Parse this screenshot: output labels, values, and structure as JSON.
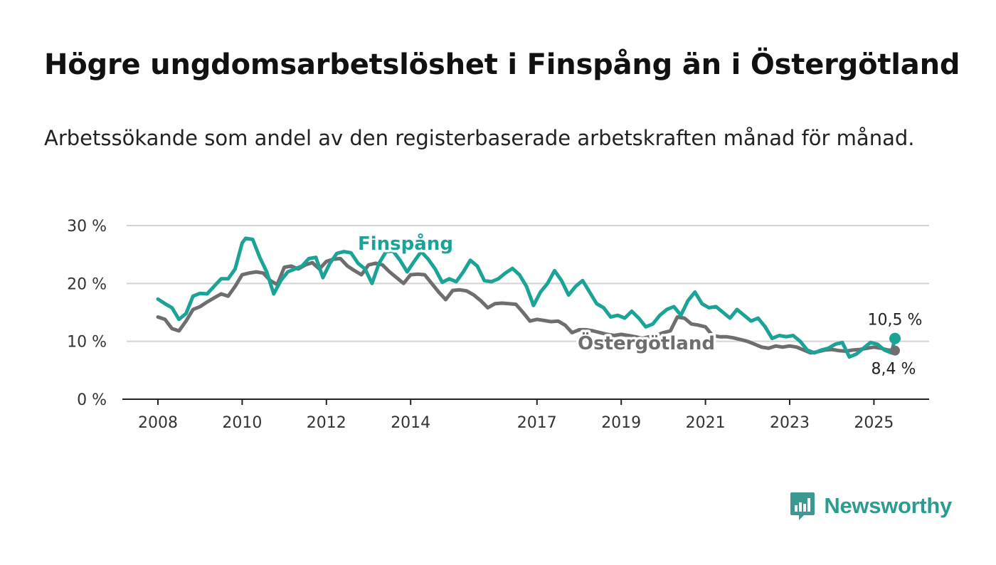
{
  "title": "Högre ungdomsarbetslöshet i Finspång än i Östergötland",
  "subtitle": "Arbetssökande som andel av den registerbaserade arbetskraften månad för månad.",
  "brand": {
    "name": "Newsworthy",
    "logo_icon": "bar-chart-speech-bubble-icon",
    "color": "#3a9a92"
  },
  "chart_data": {
    "type": "line",
    "x_start": "2008-01",
    "x_end": "2025-07",
    "x_ticks": [
      "2008",
      "2010",
      "2012",
      "2014",
      "2017",
      "2019",
      "2021",
      "2023",
      "2025"
    ],
    "y_ticks": [
      "0 %",
      "10 %",
      "20 %",
      "30 %"
    ],
    "ylim": [
      0,
      30
    ],
    "grid": true,
    "series": [
      {
        "name": "Finspång",
        "color": "#1aa396",
        "end_label": "10,5 %",
        "points": [
          [
            "2008-01",
            17.3
          ],
          [
            "2008-03",
            16.5
          ],
          [
            "2008-05",
            15.8
          ],
          [
            "2008-07",
            13.8
          ],
          [
            "2008-09",
            14.8
          ],
          [
            "2008-11",
            17.8
          ],
          [
            "2009-01",
            18.3
          ],
          [
            "2009-03",
            18.2
          ],
          [
            "2009-05",
            19.5
          ],
          [
            "2009-07",
            20.8
          ],
          [
            "2009-09",
            20.8
          ],
          [
            "2009-11",
            22.5
          ],
          [
            "2010-01",
            27.0
          ],
          [
            "2010-02",
            27.8
          ],
          [
            "2010-04",
            27.6
          ],
          [
            "2010-06",
            24.5
          ],
          [
            "2010-08",
            22.0
          ],
          [
            "2010-10",
            18.2
          ],
          [
            "2010-12",
            20.5
          ],
          [
            "2011-02",
            22.0
          ],
          [
            "2011-04",
            22.5
          ],
          [
            "2011-06",
            23.0
          ],
          [
            "2011-08",
            24.3
          ],
          [
            "2011-10",
            24.5
          ],
          [
            "2011-12",
            21.0
          ],
          [
            "2012-02",
            23.5
          ],
          [
            "2012-04",
            25.2
          ],
          [
            "2012-06",
            25.5
          ],
          [
            "2012-08",
            25.3
          ],
          [
            "2012-10",
            23.5
          ],
          [
            "2012-12",
            22.5
          ],
          [
            "2013-02",
            20.0
          ],
          [
            "2013-04",
            23.5
          ],
          [
            "2013-06",
            25.5
          ],
          [
            "2013-08",
            25.6
          ],
          [
            "2013-10",
            24.0
          ],
          [
            "2013-12",
            22.0
          ],
          [
            "2014-02",
            23.8
          ],
          [
            "2014-04",
            25.5
          ],
          [
            "2014-06",
            24.2
          ],
          [
            "2014-08",
            22.5
          ],
          [
            "2014-10",
            20.2
          ],
          [
            "2014-12",
            20.8
          ],
          [
            "2015-02",
            20.3
          ],
          [
            "2015-04",
            22.0
          ],
          [
            "2015-06",
            24.0
          ],
          [
            "2015-08",
            23.0
          ],
          [
            "2015-10",
            20.5
          ],
          [
            "2015-12",
            20.3
          ],
          [
            "2016-02",
            20.8
          ],
          [
            "2016-04",
            21.8
          ],
          [
            "2016-06",
            22.6
          ],
          [
            "2016-08",
            21.5
          ],
          [
            "2016-10",
            19.5
          ],
          [
            "2016-12",
            16.2
          ],
          [
            "2017-02",
            18.5
          ],
          [
            "2017-04",
            20.0
          ],
          [
            "2017-06",
            22.2
          ],
          [
            "2017-08",
            20.5
          ],
          [
            "2017-10",
            18.0
          ],
          [
            "2017-12",
            19.5
          ],
          [
            "2018-02",
            20.5
          ],
          [
            "2018-04",
            18.5
          ],
          [
            "2018-06",
            16.5
          ],
          [
            "2018-08",
            15.8
          ],
          [
            "2018-10",
            14.2
          ],
          [
            "2018-12",
            14.5
          ],
          [
            "2019-02",
            14.0
          ],
          [
            "2019-04",
            15.2
          ],
          [
            "2019-06",
            14.0
          ],
          [
            "2019-08",
            12.5
          ],
          [
            "2019-10",
            13.0
          ],
          [
            "2019-12",
            14.5
          ],
          [
            "2020-02",
            15.5
          ],
          [
            "2020-04",
            16.0
          ],
          [
            "2020-06",
            14.5
          ],
          [
            "2020-08",
            17.0
          ],
          [
            "2020-10",
            18.5
          ],
          [
            "2020-12",
            16.5
          ],
          [
            "2021-02",
            15.8
          ],
          [
            "2021-04",
            16.0
          ],
          [
            "2021-06",
            15.0
          ],
          [
            "2021-08",
            14.0
          ],
          [
            "2021-10",
            15.5
          ],
          [
            "2021-12",
            14.5
          ],
          [
            "2022-02",
            13.5
          ],
          [
            "2022-04",
            14.0
          ],
          [
            "2022-06",
            12.5
          ],
          [
            "2022-08",
            10.5
          ],
          [
            "2022-10",
            11.0
          ],
          [
            "2022-12",
            10.8
          ],
          [
            "2023-02",
            11.0
          ],
          [
            "2023-04",
            10.0
          ],
          [
            "2023-06",
            8.5
          ],
          [
            "2023-08",
            8.0
          ],
          [
            "2023-10",
            8.5
          ],
          [
            "2023-12",
            8.8
          ],
          [
            "2024-02",
            9.5
          ],
          [
            "2024-04",
            9.8
          ],
          [
            "2024-06",
            7.3
          ],
          [
            "2024-08",
            7.8
          ],
          [
            "2024-10",
            8.8
          ],
          [
            "2024-12",
            9.8
          ],
          [
            "2025-02",
            9.5
          ],
          [
            "2025-04",
            8.5
          ],
          [
            "2025-06",
            8.0
          ],
          [
            "2025-07",
            10.5
          ]
        ]
      },
      {
        "name": "Östergötland",
        "color": "#6e6e70",
        "end_label": "8,4 %",
        "points": [
          [
            "2008-01",
            14.2
          ],
          [
            "2008-03",
            13.8
          ],
          [
            "2008-05",
            12.2
          ],
          [
            "2008-07",
            11.8
          ],
          [
            "2008-09",
            13.5
          ],
          [
            "2008-11",
            15.5
          ],
          [
            "2009-01",
            16.0
          ],
          [
            "2009-03",
            16.8
          ],
          [
            "2009-05",
            17.5
          ],
          [
            "2009-07",
            18.2
          ],
          [
            "2009-09",
            17.8
          ],
          [
            "2009-11",
            19.5
          ],
          [
            "2010-01",
            21.5
          ],
          [
            "2010-03",
            21.8
          ],
          [
            "2010-05",
            22.0
          ],
          [
            "2010-07",
            21.8
          ],
          [
            "2010-09",
            20.5
          ],
          [
            "2010-11",
            19.8
          ],
          [
            "2011-01",
            22.8
          ],
          [
            "2011-03",
            23.0
          ],
          [
            "2011-05",
            22.5
          ],
          [
            "2011-07",
            23.2
          ],
          [
            "2011-09",
            23.6
          ],
          [
            "2011-11",
            22.5
          ],
          [
            "2012-01",
            23.8
          ],
          [
            "2012-03",
            24.2
          ],
          [
            "2012-05",
            24.3
          ],
          [
            "2012-07",
            23.0
          ],
          [
            "2012-09",
            22.2
          ],
          [
            "2012-11",
            21.5
          ],
          [
            "2013-01",
            23.2
          ],
          [
            "2013-03",
            23.5
          ],
          [
            "2013-05",
            23.2
          ],
          [
            "2013-07",
            22.0
          ],
          [
            "2013-09",
            21.0
          ],
          [
            "2013-11",
            20.0
          ],
          [
            "2014-01",
            21.5
          ],
          [
            "2014-03",
            21.6
          ],
          [
            "2014-05",
            21.5
          ],
          [
            "2014-07",
            20.0
          ],
          [
            "2014-09",
            18.5
          ],
          [
            "2014-11",
            17.2
          ],
          [
            "2015-01",
            18.8
          ],
          [
            "2015-03",
            18.9
          ],
          [
            "2015-05",
            18.7
          ],
          [
            "2015-07",
            18.0
          ],
          [
            "2015-09",
            17.0
          ],
          [
            "2015-11",
            15.8
          ],
          [
            "2016-01",
            16.5
          ],
          [
            "2016-03",
            16.6
          ],
          [
            "2016-05",
            16.5
          ],
          [
            "2016-07",
            16.4
          ],
          [
            "2016-09",
            15.0
          ],
          [
            "2016-11",
            13.5
          ],
          [
            "2017-01",
            13.8
          ],
          [
            "2017-03",
            13.6
          ],
          [
            "2017-05",
            13.4
          ],
          [
            "2017-07",
            13.5
          ],
          [
            "2017-09",
            12.8
          ],
          [
            "2017-11",
            11.5
          ],
          [
            "2018-01",
            12.0
          ],
          [
            "2018-03",
            12.0
          ],
          [
            "2018-05",
            11.8
          ],
          [
            "2018-07",
            11.5
          ],
          [
            "2018-09",
            11.2
          ],
          [
            "2018-11",
            11.0
          ],
          [
            "2019-01",
            11.2
          ],
          [
            "2019-03",
            11.0
          ],
          [
            "2019-05",
            10.8
          ],
          [
            "2019-07",
            10.5
          ],
          [
            "2019-09",
            10.8
          ],
          [
            "2019-11",
            11.0
          ],
          [
            "2020-01",
            11.5
          ],
          [
            "2020-03",
            11.8
          ],
          [
            "2020-05",
            14.2
          ],
          [
            "2020-07",
            14.0
          ],
          [
            "2020-09",
            13.0
          ],
          [
            "2020-11",
            12.8
          ],
          [
            "2021-01",
            12.5
          ],
          [
            "2021-03",
            11.0
          ],
          [
            "2021-05",
            10.8
          ],
          [
            "2021-07",
            10.8
          ],
          [
            "2021-09",
            10.6
          ],
          [
            "2021-11",
            10.3
          ],
          [
            "2022-01",
            10.0
          ],
          [
            "2022-03",
            9.5
          ],
          [
            "2022-05",
            9.0
          ],
          [
            "2022-07",
            8.8
          ],
          [
            "2022-09",
            9.2
          ],
          [
            "2022-11",
            9.0
          ],
          [
            "2023-01",
            9.2
          ],
          [
            "2023-03",
            9.0
          ],
          [
            "2023-05",
            8.5
          ],
          [
            "2023-07",
            8.0
          ],
          [
            "2023-09",
            8.2
          ],
          [
            "2023-11",
            8.5
          ],
          [
            "2024-01",
            8.6
          ],
          [
            "2024-03",
            8.4
          ],
          [
            "2024-05",
            8.3
          ],
          [
            "2024-07",
            8.5
          ],
          [
            "2024-09",
            8.6
          ],
          [
            "2024-11",
            8.8
          ],
          [
            "2025-01",
            9.0
          ],
          [
            "2025-03",
            8.8
          ],
          [
            "2025-05",
            8.5
          ],
          [
            "2025-07",
            8.4
          ]
        ]
      }
    ]
  }
}
